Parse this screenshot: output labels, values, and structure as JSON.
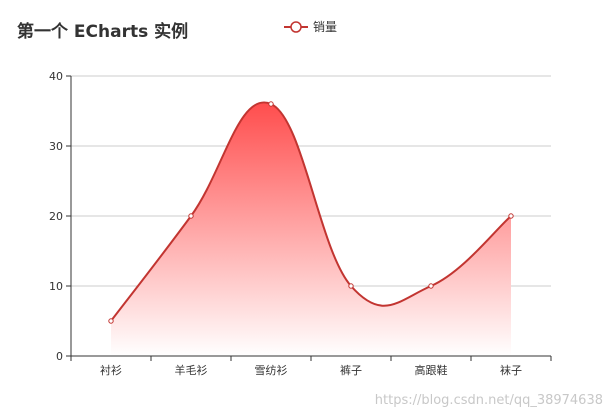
{
  "chart_data": {
    "type": "line",
    "title": "第一个 ECharts 实例",
    "categories": [
      "衬衫",
      "羊毛衫",
      "雪纺衫",
      "裤子",
      "高跟鞋",
      "袜子"
    ],
    "series": [
      {
        "name": "销量",
        "values": [
          5,
          20,
          36,
          10,
          10,
          20
        ]
      }
    ],
    "smooth": true,
    "area_fill": true,
    "ylim": [
      0,
      40
    ],
    "yticks": [
      0,
      10,
      20,
      30,
      40
    ],
    "xlabel": "",
    "ylabel": "",
    "grid": true,
    "legend": "top",
    "colors": {
      "line": "#c23531",
      "area_top": "#ff4d4d",
      "area_bottom": "#ffffff",
      "grid": "#cccccc",
      "axis": "#333333"
    }
  },
  "watermark": "https://blog.csdn.net/qq_38974638"
}
